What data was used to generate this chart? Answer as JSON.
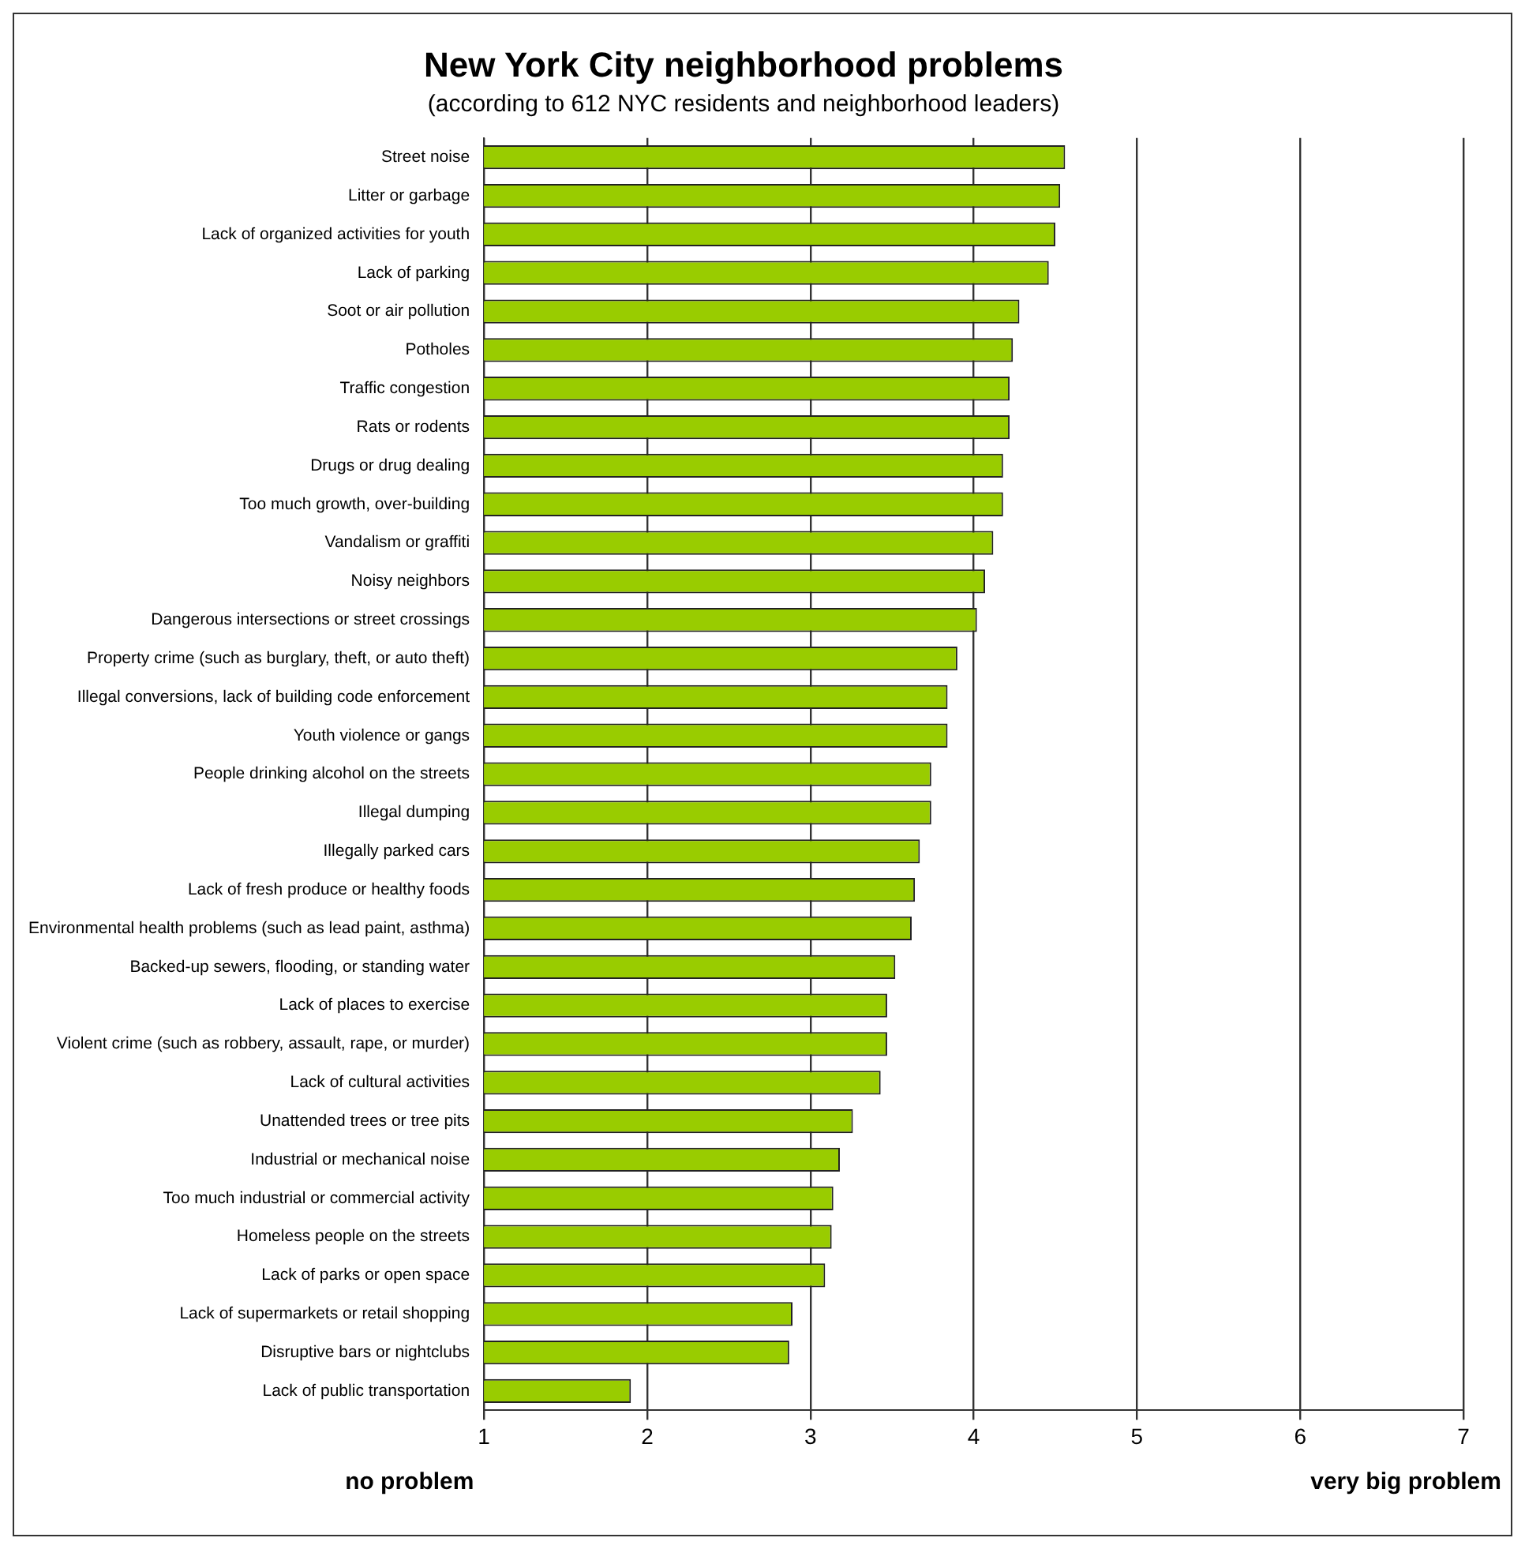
{
  "chart_data": {
    "type": "bar",
    "orientation": "horizontal",
    "title": "New York City neighborhood problems",
    "subtitle": "(according to 612 NYC residents and neighborhood leaders)",
    "categories": [
      "Street noise",
      "Litter or garbage",
      "Lack of organized activities for youth",
      "Lack of parking",
      "Soot or air pollution",
      "Potholes",
      "Traffic congestion",
      "Rats or rodents",
      "Drugs or drug dealing",
      "Too much growth, over-building",
      "Vandalism or graffiti",
      "Noisy neighbors",
      "Dangerous intersections or street crossings",
      "Property crime (such as burglary, theft, or auto theft)",
      "Illegal conversions, lack of building code enforcement",
      "Youth violence or gangs",
      "People drinking alcohol on the streets",
      "Illegal dumping",
      "Illegally parked cars",
      "Lack of fresh produce or healthy foods",
      "Environmental health problems (such as lead paint, asthma)",
      "Backed-up sewers, flooding, or standing water",
      "Lack of places to exercise",
      "Violent crime (such as robbery, assault, rape, or murder)",
      "Lack of cultural activities",
      "Unattended trees or tree pits",
      "Industrial or mechanical noise",
      "Too much industrial or commercial activity",
      "Homeless people on the streets",
      "Lack of parks or open space",
      "Lack of supermarkets or retail shopping",
      "Disruptive bars or nightclubs",
      "Lack of public transportation"
    ],
    "values": [
      4.56,
      4.53,
      4.5,
      4.46,
      4.28,
      4.24,
      4.22,
      4.22,
      4.18,
      4.18,
      4.12,
      4.07,
      4.02,
      3.9,
      3.84,
      3.84,
      3.74,
      3.74,
      3.67,
      3.64,
      3.62,
      3.52,
      3.47,
      3.47,
      3.43,
      3.26,
      3.18,
      3.14,
      3.13,
      3.09,
      2.89,
      2.87,
      1.9
    ],
    "color": "#99cc00",
    "xlim": [
      1,
      7
    ],
    "xticks": [
      1,
      2,
      3,
      4,
      5,
      6,
      7
    ],
    "grid": "x",
    "legend": false,
    "annotations": [
      "no problem",
      "very big problem"
    ]
  }
}
